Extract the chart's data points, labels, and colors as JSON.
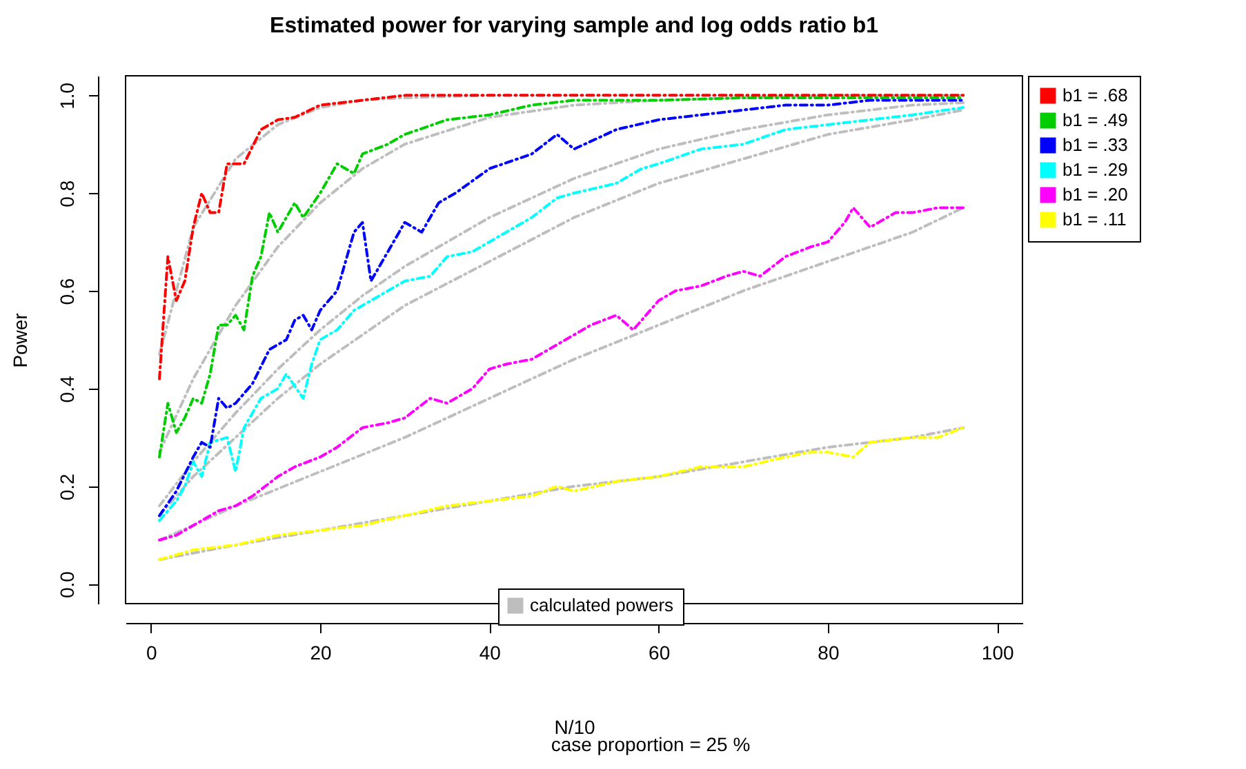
{
  "chart_data": {
    "type": "line",
    "title": "Estimated power for varying sample and log odds ratio b1",
    "xlabel": "N/10",
    "ylabel": "Power",
    "annotations": [
      "case proportion =  25 %"
    ],
    "xlim": [
      -3,
      103
    ],
    "xticks": [
      0,
      20,
      40,
      60,
      80,
      100
    ],
    "ylim": [
      -0.04,
      1.04
    ],
    "yticks": [
      {
        "value": 0,
        "label": "0.0"
      },
      {
        "value": 0.2,
        "label": "0.2"
      },
      {
        "value": 0.4,
        "label": "0.4"
      },
      {
        "value": 0.6,
        "label": "0.6"
      },
      {
        "value": 0.8,
        "label": "0.8"
      },
      {
        "value": 1,
        "label": "1.0"
      }
    ],
    "legend": "right",
    "marker": "none",
    "line_style": "dashed",
    "series": [
      {
        "name": "b1 = .68",
        "color": "#ff0000",
        "x": [
          1,
          2,
          3,
          4,
          5,
          6,
          7,
          8,
          9,
          10,
          11,
          13,
          15,
          17,
          20,
          25,
          30,
          40,
          50,
          60,
          70,
          80,
          96
        ],
        "values": [
          0.42,
          0.67,
          0.58,
          0.62,
          0.73,
          0.8,
          0.76,
          0.76,
          0.86,
          0.86,
          0.86,
          0.93,
          0.95,
          0.955,
          0.98,
          0.99,
          1,
          1,
          1,
          1,
          1,
          1,
          1
        ]
      },
      {
        "name": "b1 = .49",
        "color": "#00cd00",
        "x": [
          1,
          2,
          3,
          4,
          5,
          6,
          7,
          8,
          9,
          10,
          11,
          12,
          13,
          14,
          15,
          16,
          17,
          18,
          20,
          22,
          24,
          25,
          28,
          30,
          35,
          40,
          45,
          50,
          60,
          70,
          96
        ],
        "values": [
          0.26,
          0.37,
          0.31,
          0.34,
          0.38,
          0.37,
          0.43,
          0.53,
          0.53,
          0.55,
          0.52,
          0.63,
          0.67,
          0.76,
          0.72,
          0.75,
          0.78,
          0.75,
          0.8,
          0.86,
          0.84,
          0.88,
          0.9,
          0.92,
          0.95,
          0.96,
          0.98,
          0.99,
          0.99,
          0.995,
          0.995
        ]
      },
      {
        "name": "b1 = .33",
        "color": "#0000ff",
        "x": [
          1,
          3,
          5,
          6,
          7,
          8,
          9,
          10,
          12,
          14,
          16,
          17,
          18,
          19,
          20,
          21,
          22,
          24,
          25,
          26,
          28,
          30,
          32,
          34,
          36,
          40,
          45,
          48,
          50,
          55,
          60,
          65,
          70,
          75,
          80,
          85,
          90,
          96
        ],
        "values": [
          0.14,
          0.19,
          0.26,
          0.29,
          0.28,
          0.38,
          0.36,
          0.37,
          0.41,
          0.48,
          0.5,
          0.54,
          0.55,
          0.52,
          0.56,
          0.58,
          0.6,
          0.72,
          0.74,
          0.62,
          0.68,
          0.74,
          0.72,
          0.78,
          0.8,
          0.85,
          0.88,
          0.92,
          0.89,
          0.93,
          0.95,
          0.96,
          0.97,
          0.98,
          0.98,
          0.99,
          0.99,
          0.99
        ]
      },
      {
        "name": "b1 = .29",
        "color": "#00ffff",
        "x": [
          1,
          3,
          4,
          5,
          6,
          7,
          9,
          10,
          11,
          13,
          15,
          16,
          18,
          19,
          20,
          22,
          24,
          26,
          28,
          30,
          33,
          35,
          38,
          40,
          42,
          45,
          48,
          50,
          55,
          58,
          60,
          65,
          70,
          75,
          80,
          85,
          90,
          96
        ],
        "values": [
          0.13,
          0.17,
          0.2,
          0.25,
          0.22,
          0.29,
          0.3,
          0.23,
          0.32,
          0.38,
          0.4,
          0.43,
          0.38,
          0.45,
          0.5,
          0.52,
          0.56,
          0.58,
          0.6,
          0.62,
          0.63,
          0.67,
          0.68,
          0.7,
          0.72,
          0.75,
          0.79,
          0.8,
          0.82,
          0.85,
          0.86,
          0.89,
          0.9,
          0.93,
          0.94,
          0.95,
          0.96,
          0.975
        ]
      },
      {
        "name": "b1 = .20",
        "color": "#ff00ff",
        "x": [
          1,
          3,
          5,
          8,
          10,
          12,
          15,
          17,
          20,
          22,
          25,
          28,
          30,
          33,
          35,
          38,
          40,
          42,
          45,
          47,
          50,
          52,
          55,
          57,
          60,
          62,
          65,
          68,
          70,
          72,
          75,
          78,
          80,
          82,
          83,
          85,
          88,
          90,
          93,
          96
        ],
        "values": [
          0.09,
          0.1,
          0.12,
          0.15,
          0.16,
          0.18,
          0.22,
          0.24,
          0.26,
          0.28,
          0.32,
          0.33,
          0.34,
          0.38,
          0.37,
          0.4,
          0.44,
          0.45,
          0.46,
          0.48,
          0.51,
          0.53,
          0.55,
          0.52,
          0.58,
          0.6,
          0.61,
          0.63,
          0.64,
          0.63,
          0.67,
          0.69,
          0.7,
          0.74,
          0.77,
          0.73,
          0.76,
          0.76,
          0.77,
          0.77
        ]
      },
      {
        "name": "b1 = .11",
        "color": "#ffff00",
        "x": [
          1,
          5,
          10,
          15,
          20,
          25,
          30,
          35,
          40,
          45,
          48,
          50,
          55,
          60,
          65,
          70,
          75,
          78,
          80,
          83,
          85,
          90,
          93,
          96
        ],
        "values": [
          0.05,
          0.07,
          0.08,
          0.1,
          0.11,
          0.12,
          0.14,
          0.16,
          0.17,
          0.18,
          0.2,
          0.19,
          0.21,
          0.22,
          0.24,
          0.24,
          0.26,
          0.27,
          0.27,
          0.26,
          0.29,
          0.3,
          0.3,
          0.32
        ]
      },
      {
        "name": "calculated powers",
        "color": "#bebebe",
        "x": [
          1,
          5,
          10,
          15,
          20,
          25,
          30,
          40,
          50,
          60,
          70,
          80,
          90,
          96
        ],
        "values": [
          0.47,
          0.73,
          0.87,
          0.94,
          0.975,
          0.99,
          0.995,
          1,
          1,
          1,
          1,
          1,
          1,
          1
        ]
      },
      {
        "color": "#bebebe",
        "x": [
          1,
          5,
          10,
          15,
          20,
          25,
          30,
          40,
          50,
          60,
          70,
          80,
          90,
          96
        ],
        "values": [
          0.27,
          0.42,
          0.57,
          0.69,
          0.78,
          0.85,
          0.9,
          0.955,
          0.98,
          0.99,
          0.995,
          1,
          1,
          1
        ]
      },
      {
        "color": "#bebebe",
        "x": [
          1,
          5,
          10,
          15,
          20,
          25,
          30,
          40,
          50,
          60,
          70,
          80,
          90,
          96
        ],
        "values": [
          0.16,
          0.25,
          0.35,
          0.44,
          0.52,
          0.59,
          0.65,
          0.75,
          0.83,
          0.89,
          0.93,
          0.96,
          0.98,
          0.985
        ]
      },
      {
        "color": "#bebebe",
        "x": [
          1,
          5,
          10,
          15,
          20,
          25,
          30,
          40,
          50,
          60,
          70,
          80,
          90,
          96
        ],
        "values": [
          0.14,
          0.22,
          0.3,
          0.38,
          0.45,
          0.51,
          0.57,
          0.66,
          0.75,
          0.82,
          0.87,
          0.92,
          0.95,
          0.97
        ]
      },
      {
        "color": "#bebebe",
        "x": [
          1,
          5,
          10,
          20,
          30,
          40,
          50,
          60,
          70,
          80,
          90,
          96
        ],
        "values": [
          0.09,
          0.12,
          0.16,
          0.23,
          0.3,
          0.38,
          0.46,
          0.53,
          0.6,
          0.66,
          0.72,
          0.77
        ]
      },
      {
        "color": "#bebebe",
        "x": [
          1,
          10,
          20,
          30,
          40,
          50,
          60,
          70,
          80,
          90,
          96
        ],
        "values": [
          0.05,
          0.08,
          0.11,
          0.14,
          0.17,
          0.2,
          0.22,
          0.25,
          0.28,
          0.3,
          0.32
        ]
      }
    ]
  }
}
